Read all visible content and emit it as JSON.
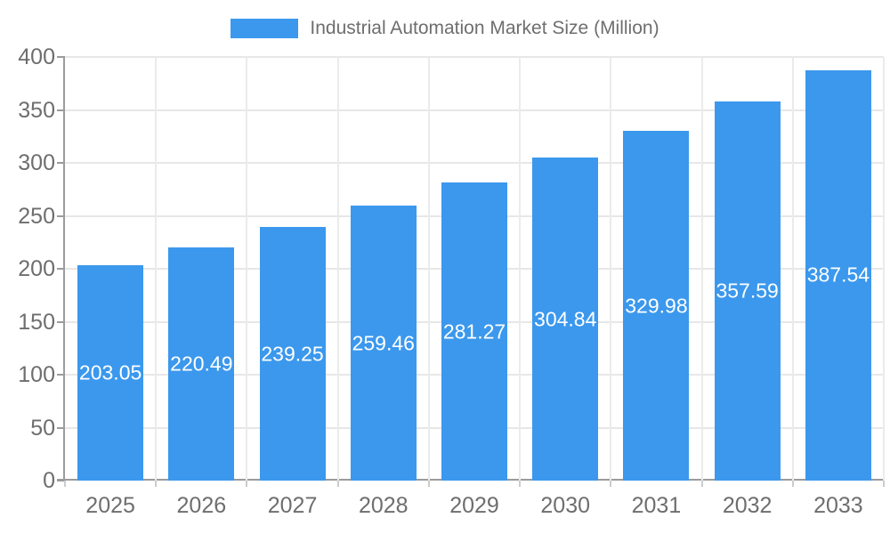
{
  "chart_data": {
    "type": "bar",
    "title": "Industrial Automation Market Size (Million)",
    "categories": [
      "2025",
      "2026",
      "2027",
      "2028",
      "2029",
      "2030",
      "2031",
      "2032",
      "2033"
    ],
    "series": [
      {
        "name": "Industrial Automation Market Size (Million)",
        "values": [
          203.05,
          220.49,
          239.25,
          259.46,
          281.27,
          304.84,
          329.98,
          357.59,
          387.54
        ]
      }
    ],
    "value_labels": [
      "203.05",
      "220.49",
      "239.25",
      "259.46",
      "281.27",
      "304.84",
      "329.98",
      "357.59",
      "387.54"
    ],
    "xlabel": "",
    "ylabel": "",
    "y_ticks": [
      0,
      50,
      100,
      150,
      200,
      250,
      300,
      350,
      400
    ],
    "ylim": [
      0,
      400
    ],
    "grid": true,
    "legend_position": "top",
    "colors": {
      "bar": "#3B98ED",
      "bar_label_text": "#FFFFFF",
      "axis_text": "#6E6E6E",
      "grid_line": "#E7E7E7",
      "axis_line": "#9B9B9B",
      "background": "#FFFFFF"
    }
  }
}
